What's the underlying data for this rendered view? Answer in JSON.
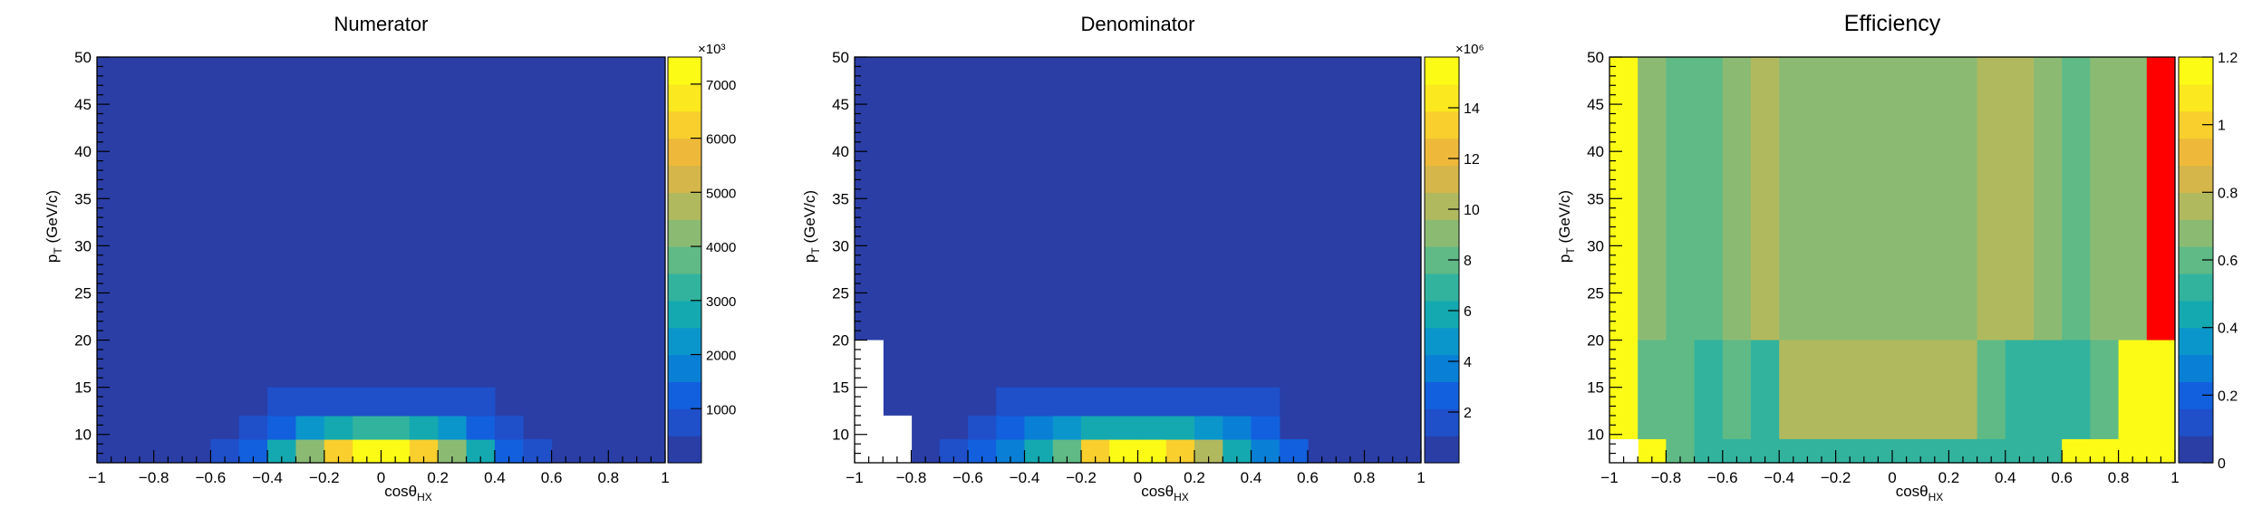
{
  "chart_data": [
    {
      "type": "heatmap",
      "title": "Numerator",
      "xlabel": {
        "main": "cosθ",
        "sub": "HX"
      },
      "ylabel": {
        "main": "p",
        "sub": "T",
        "rest": " (GeV/c)"
      },
      "xlim": [
        -1,
        1
      ],
      "ylim": [
        7,
        50
      ],
      "x_ticks": [
        "−1",
        "−0.8",
        "−0.6",
        "−0.4",
        "−0.2",
        "0",
        "0.2",
        "0.4",
        "0.6",
        "0.8",
        "1"
      ],
      "y_ticks": [
        "10",
        "15",
        "20",
        "25",
        "30",
        "35",
        "40",
        "45",
        "50"
      ],
      "colorbar": {
        "min": 0,
        "max": 7500,
        "exponent_label": "×10³",
        "tick_values": [
          1000,
          2000,
          3000,
          4000,
          5000,
          6000,
          7000
        ],
        "tick_labels": [
          "1000",
          "2000",
          "3000",
          "4000",
          "5000",
          "6000",
          "7000"
        ]
      },
      "x_edges": [
        -1,
        -0.9,
        -0.8,
        -0.7,
        -0.6,
        -0.5,
        -0.4,
        -0.3,
        -0.2,
        -0.1,
        0,
        0.1,
        0.2,
        0.3,
        0.4,
        0.5,
        0.6,
        0.7,
        0.8,
        0.9,
        1
      ],
      "y_edges": [
        7,
        9.5,
        12,
        15,
        20,
        50
      ],
      "background_value": 0,
      "cells": [
        [
          -0.6,
          -0.5,
          7,
          9.5,
          600
        ],
        [
          -0.5,
          -0.4,
          7,
          9.5,
          1200
        ],
        [
          -0.4,
          -0.3,
          7,
          9.5,
          2600
        ],
        [
          -0.3,
          -0.2,
          7,
          9.5,
          4400
        ],
        [
          -0.2,
          -0.1,
          7,
          9.5,
          6300
        ],
        [
          -0.1,
          0,
          7,
          9.5,
          7400
        ],
        [
          0,
          0.1,
          7,
          9.5,
          7400
        ],
        [
          0.1,
          0.2,
          7,
          9.5,
          6300
        ],
        [
          0.2,
          0.3,
          7,
          9.5,
          4400
        ],
        [
          0.3,
          0.4,
          7,
          9.5,
          2600
        ],
        [
          0.4,
          0.5,
          7,
          9.5,
          1200
        ],
        [
          0.5,
          0.6,
          7,
          9.5,
          600
        ],
        [
          -0.5,
          -0.4,
          9.5,
          12,
          600
        ],
        [
          -0.4,
          -0.3,
          9.5,
          12,
          1100
        ],
        [
          -0.3,
          -0.2,
          9.5,
          12,
          2000
        ],
        [
          -0.2,
          -0.1,
          9.5,
          12,
          2800
        ],
        [
          -0.1,
          0,
          9.5,
          12,
          3100
        ],
        [
          0,
          0.1,
          9.5,
          12,
          3100
        ],
        [
          0.1,
          0.2,
          9.5,
          12,
          2800
        ],
        [
          0.2,
          0.3,
          9.5,
          12,
          2000
        ],
        [
          0.3,
          0.4,
          9.5,
          12,
          1100
        ],
        [
          0.4,
          0.5,
          9.5,
          12,
          600
        ],
        [
          -0.4,
          0.4,
          12,
          15,
          800
        ]
      ]
    },
    {
      "type": "heatmap",
      "title": "Denominator",
      "xlabel": {
        "main": "cosθ",
        "sub": "HX"
      },
      "ylabel": {
        "main": "p",
        "sub": "T",
        "rest": " (GeV/c)"
      },
      "xlim": [
        -1,
        1
      ],
      "ylim": [
        7,
        50
      ],
      "x_ticks": [
        "−1",
        "−0.8",
        "−0.6",
        "−0.4",
        "−0.2",
        "0",
        "0.2",
        "0.4",
        "0.6",
        "0.8",
        "1"
      ],
      "y_ticks": [
        "10",
        "15",
        "20",
        "25",
        "30",
        "35",
        "40",
        "45",
        "50"
      ],
      "colorbar": {
        "min": 0,
        "max": 16,
        "exponent_label": "×10⁶",
        "tick_values": [
          2,
          4,
          6,
          8,
          10,
          12,
          14
        ],
        "tick_labels": [
          "2",
          "4",
          "6",
          "8",
          "10",
          "12",
          "14"
        ]
      },
      "x_edges": [
        -1,
        -0.9,
        -0.8,
        -0.7,
        -0.6,
        -0.5,
        -0.4,
        -0.3,
        -0.2,
        -0.1,
        0,
        0.1,
        0.2,
        0.3,
        0.4,
        0.5,
        0.6,
        0.7,
        0.8,
        0.9,
        1
      ],
      "y_edges": [
        7,
        9.5,
        12,
        15,
        20,
        50
      ],
      "background_value": 0.3,
      "empty_cells": [
        [
          -1,
          -0.9,
          7,
          20
        ],
        [
          -0.9,
          -0.8,
          7,
          12
        ]
      ],
      "cells": [
        [
          -0.7,
          -0.6,
          7,
          9.5,
          1.2
        ],
        [
          -0.6,
          -0.5,
          7,
          9.5,
          2.4
        ],
        [
          -0.5,
          -0.4,
          7,
          9.5,
          3.6
        ],
        [
          -0.4,
          -0.3,
          7,
          9.5,
          5.5
        ],
        [
          -0.3,
          -0.2,
          7,
          9.5,
          8.5
        ],
        [
          -0.2,
          -0.1,
          7,
          9.5,
          13
        ],
        [
          -0.1,
          0,
          7,
          9.5,
          15
        ],
        [
          0,
          0.1,
          7,
          9.5,
          15
        ],
        [
          0.1,
          0.2,
          7,
          9.5,
          13
        ],
        [
          0.2,
          0.3,
          7,
          9.5,
          9.8
        ],
        [
          0.3,
          0.4,
          7,
          9.5,
          6
        ],
        [
          0.4,
          0.5,
          7,
          9.5,
          3.6
        ],
        [
          0.5,
          0.6,
          7,
          9.5,
          2.2
        ],
        [
          -0.6,
          -0.5,
          9.5,
          12,
          1.2
        ],
        [
          -0.5,
          -0.4,
          9.5,
          12,
          2.2
        ],
        [
          -0.4,
          -0.3,
          9.5,
          12,
          3.6
        ],
        [
          -0.3,
          -0.2,
          9.5,
          12,
          4.8
        ],
        [
          -0.2,
          -0.1,
          9.5,
          12,
          6
        ],
        [
          -0.1,
          0,
          9.5,
          12,
          6.3
        ],
        [
          0,
          0.1,
          9.5,
          12,
          6.3
        ],
        [
          0.1,
          0.2,
          9.5,
          12,
          6
        ],
        [
          0.2,
          0.3,
          9.5,
          12,
          4.8
        ],
        [
          0.3,
          0.4,
          9.5,
          12,
          3.6
        ],
        [
          0.4,
          0.5,
          9.5,
          12,
          2.2
        ],
        [
          -0.5,
          0.5,
          12,
          15,
          1.3
        ]
      ]
    },
    {
      "type": "heatmap",
      "title": "Efficiency",
      "xlabel": {
        "main": "cosθ",
        "sub": "HX"
      },
      "ylabel": {
        "main": "p",
        "sub": "T",
        "rest": " (GeV/c)"
      },
      "xlim": [
        -1,
        1
      ],
      "ylim": [
        7,
        50
      ],
      "x_ticks": [
        "−1",
        "−0.8",
        "−0.6",
        "−0.4",
        "−0.2",
        "0",
        "0.2",
        "0.4",
        "0.6",
        "0.8",
        "1"
      ],
      "y_ticks": [
        "10",
        "15",
        "20",
        "25",
        "30",
        "35",
        "40",
        "45",
        "50"
      ],
      "colorbar": {
        "min": 0,
        "max": 1.2,
        "exponent_label": "",
        "tick_values": [
          0,
          0.2,
          0.4,
          0.6,
          0.8,
          1,
          1.2
        ],
        "tick_labels": [
          "0",
          "0.2",
          "0.4",
          "0.6",
          "0.8",
          "1",
          "1.2"
        ]
      },
      "x_edges": [
        -1,
        -0.9,
        -0.8,
        -0.7,
        -0.6,
        -0.5,
        -0.4,
        -0.3,
        -0.2,
        -0.1,
        0,
        0.1,
        0.2,
        0.3,
        0.4,
        0.5,
        0.6,
        0.7,
        0.8,
        0.9,
        1
      ],
      "y_edges": [
        7,
        9.5,
        12,
        15,
        20,
        50
      ],
      "empty_cells": [
        [
          -1,
          -0.9,
          7,
          9.5
        ]
      ],
      "cells": [
        [
          -1,
          -0.9,
          20,
          50,
          1.2
        ],
        [
          -0.9,
          -0.8,
          20,
          50,
          0.68
        ],
        [
          -0.8,
          -0.6,
          20,
          50,
          0.63
        ],
        [
          -0.6,
          -0.5,
          20,
          50,
          0.68
        ],
        [
          -0.5,
          -0.4,
          20,
          50,
          0.75
        ],
        [
          -0.4,
          0.3,
          20,
          50,
          0.68
        ],
        [
          0.3,
          0.5,
          20,
          50,
          0.75
        ],
        [
          0.5,
          0.6,
          20,
          50,
          0.68
        ],
        [
          0.6,
          0.7,
          20,
          50,
          0.63
        ],
        [
          0.7,
          0.9,
          20,
          50,
          0.68
        ],
        [
          0.9,
          1,
          20,
          50,
          1.4
        ],
        [
          -1,
          -0.9,
          9.5,
          20,
          1.2
        ],
        [
          -0.9,
          -0.8,
          9.5,
          20,
          0.6
        ],
        [
          -0.8,
          -0.7,
          9.5,
          20,
          0.58
        ],
        [
          -0.7,
          -0.6,
          9.5,
          20,
          0.55
        ],
        [
          -0.6,
          -0.5,
          9.5,
          20,
          0.58
        ],
        [
          -0.5,
          -0.4,
          9.5,
          20,
          0.52
        ],
        [
          -0.4,
          0.3,
          9.5,
          20,
          0.75
        ],
        [
          0.3,
          0.4,
          9.5,
          20,
          0.58
        ],
        [
          0.4,
          0.5,
          9.5,
          20,
          0.55
        ],
        [
          0.5,
          0.6,
          9.5,
          20,
          0.48
        ],
        [
          0.6,
          0.7,
          9.5,
          20,
          0.55
        ],
        [
          0.7,
          0.8,
          9.5,
          20,
          0.58
        ],
        [
          0.8,
          1,
          9.5,
          20,
          1.2
        ],
        [
          -0.9,
          -0.8,
          7,
          9.5,
          1.2
        ],
        [
          -0.8,
          -0.7,
          7,
          9.5,
          0.6
        ],
        [
          -0.7,
          -0.6,
          7,
          9.5,
          0.55
        ],
        [
          -0.6,
          -0.5,
          7,
          9.5,
          0.52
        ],
        [
          -0.5,
          -0.4,
          7,
          9.5,
          0.55
        ],
        [
          -0.4,
          0.3,
          7,
          9.5,
          0.52
        ],
        [
          0.3,
          0.4,
          7,
          9.5,
          0.55
        ],
        [
          0.4,
          0.5,
          7,
          9.5,
          0.52
        ],
        [
          0.5,
          0.6,
          7,
          9.5,
          0.55
        ],
        [
          0.6,
          1,
          7,
          9.5,
          1.2
        ]
      ]
    }
  ]
}
